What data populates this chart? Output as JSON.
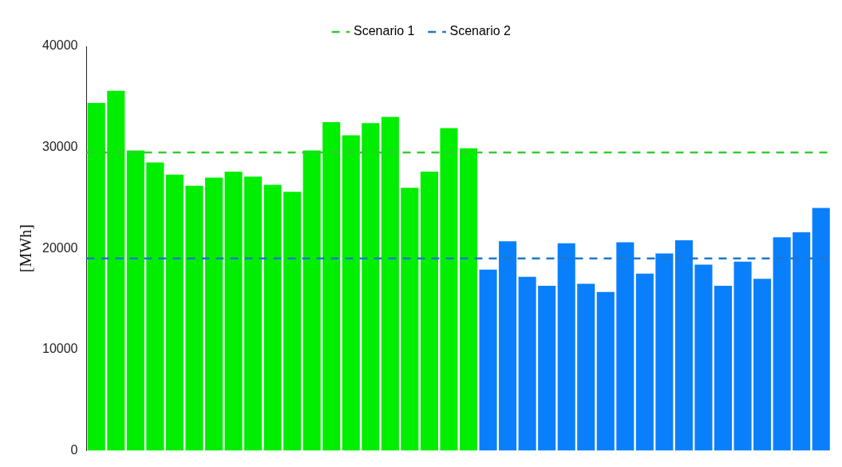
{
  "chart_data": {
    "type": "bar",
    "ylabel": "[MWh]",
    "categories": [
      null,
      null,
      null,
      null,
      null,
      null,
      null,
      null,
      null,
      null,
      null,
      null,
      null,
      null,
      null,
      null,
      null,
      null,
      null,
      null,
      null,
      null,
      null,
      null,
      null,
      null,
      null,
      null,
      null,
      null,
      null,
      null,
      null,
      null,
      null,
      null,
      null,
      null
    ],
    "values": [
      34400,
      35600,
      29700,
      28500,
      27300,
      26200,
      27000,
      27600,
      27100,
      26300,
      25600,
      29700,
      32500,
      31200,
      32400,
      33000,
      26000,
      27600,
      31900,
      29900,
      17900,
      20700,
      17200,
      16300,
      20500,
      16500,
      15700,
      20600,
      17500,
      19500,
      20800,
      18400,
      16300,
      18700,
      17000,
      21100,
      21600,
      24000
    ],
    "colors": [
      "#00ee00",
      "#00ee00",
      "#00ee00",
      "#00ee00",
      "#00ee00",
      "#00ee00",
      "#00ee00",
      "#00ee00",
      "#00ee00",
      "#00ee00",
      "#00ee00",
      "#00ee00",
      "#00ee00",
      "#00ee00",
      "#00ee00",
      "#00ee00",
      "#00ee00",
      "#00ee00",
      "#00ee00",
      "#00ee00",
      "#0a7ffc",
      "#0a7ffc",
      "#0a7ffc",
      "#0a7ffc",
      "#0a7ffc",
      "#0a7ffc",
      "#0a7ffc",
      "#0a7ffc",
      "#0a7ffc",
      "#0a7ffc",
      "#0a7ffc",
      "#0a7ffc",
      "#0a7ffc",
      "#0a7ffc",
      "#0a7ffc",
      "#0a7ffc",
      "#0a7ffc",
      "#0a7ffc"
    ],
    "ylim": [
      0,
      40000
    ],
    "yticks": [
      0,
      10000,
      20000,
      30000,
      40000
    ],
    "ref_lines": [
      {
        "axis": "y",
        "value": 29500,
        "label": "Scenario 1",
        "color": "#33cc33",
        "line_style": "dashed"
      },
      {
        "axis": "y",
        "value": 19000,
        "label": "Scenario 2",
        "color": "#1f78c8",
        "line_style": "dashed"
      }
    ],
    "legend": "top",
    "grid": false
  }
}
